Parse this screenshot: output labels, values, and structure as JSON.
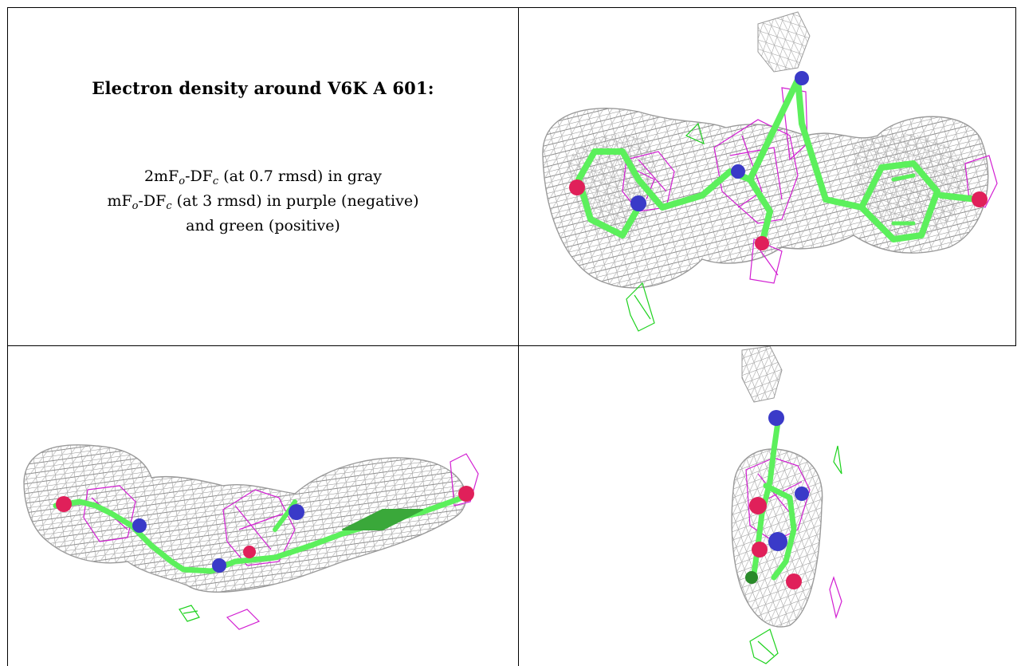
{
  "caption": {
    "title": "Electron density around V6K A 601:",
    "line1": {
      "prefix": "2mF",
      "sub1": "o",
      "mid": "-DF",
      "sub2": "c",
      "suffix": " (at 0.7 rmsd) in gray"
    },
    "line2": {
      "prefix": "mF",
      "sub1": "o",
      "mid": "-DF",
      "sub2": "c",
      "suffix": " (at 3 rmsd) in purple (negative)"
    },
    "line3": "and green (positive)"
  },
  "panels": [
    {
      "id": "top-right",
      "view": "face-on"
    },
    {
      "id": "bottom-left",
      "view": "edge-on"
    },
    {
      "id": "bottom-right",
      "view": "end-on"
    }
  ],
  "colors": {
    "density_2fo_fc": "#8e8e8e",
    "fo_fc_negative": "#d21ed2",
    "fo_fc_positive": "#1ed21e",
    "carbon": "#5cf05c",
    "nitrogen": "#3a3ac8",
    "oxygen": "#e0205a"
  }
}
